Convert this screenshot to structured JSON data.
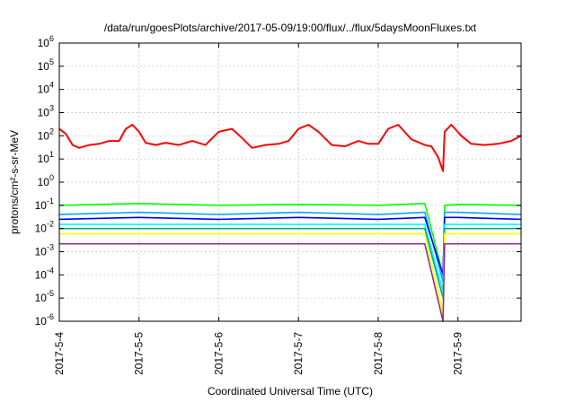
{
  "chart_data": {
    "type": "line",
    "title": "/data/run/goesPlots/archive/2017-05-09/19:00/flux/../flux/5daysMoonFluxes.txt",
    "xlabel": "Coordinated Universal Time (UTC)",
    "ylabel": "protons/cm²-s-sr-MeV",
    "y_scale": "log",
    "ylim": [
      1e-06,
      1000000.0
    ],
    "y_ticks": [
      {
        "value": 1e-06,
        "base": "10",
        "exp": "-6"
      },
      {
        "value": 1e-05,
        "base": "10",
        "exp": "-5"
      },
      {
        "value": 0.0001,
        "base": "10",
        "exp": "-4"
      },
      {
        "value": 0.001,
        "base": "10",
        "exp": "-3"
      },
      {
        "value": 0.01,
        "base": "10",
        "exp": "-2"
      },
      {
        "value": 0.1,
        "base": "10",
        "exp": "-1"
      },
      {
        "value": 1,
        "base": "10",
        "exp": "0"
      },
      {
        "value": 10,
        "base": "10",
        "exp": "1"
      },
      {
        "value": 100,
        "base": "10",
        "exp": "2"
      },
      {
        "value": 1000,
        "base": "10",
        "exp": "3"
      },
      {
        "value": 10000,
        "base": "10",
        "exp": "4"
      },
      {
        "value": 100000,
        "base": "10",
        "exp": "5"
      },
      {
        "value": 1000000,
        "base": "10",
        "exp": "6"
      }
    ],
    "xlim": [
      "2017-05-04 00:00",
      "2017-05-09 19:00"
    ],
    "x_tick_labels": [
      "2017-5-4",
      "2017-5-5",
      "2017-5-6",
      "2017-5-7",
      "2017-5-8",
      "2017-5-9"
    ],
    "grid": true,
    "legend": "none",
    "series": [
      {
        "color": "#ff0000",
        "x": [
          "2017-05-04 00:00",
          "2017-05-04 02:00",
          "2017-05-04 04:00",
          "2017-05-04 06:00",
          "2017-05-04 09:00",
          "2017-05-04 12:00",
          "2017-05-04 15:00",
          "2017-05-04 18:00",
          "2017-05-04 20:00",
          "2017-05-04 22:00",
          "2017-05-05 00:00",
          "2017-05-05 02:00",
          "2017-05-05 05:00",
          "2017-05-05 08:00",
          "2017-05-05 12:00",
          "2017-05-05 16:00",
          "2017-05-05 20:00",
          "2017-05-06 00:00",
          "2017-05-06 04:00",
          "2017-05-06 07:00",
          "2017-05-06 10:00",
          "2017-05-06 14:00",
          "2017-05-06 18:00",
          "2017-05-06 21:00",
          "2017-05-07 00:00",
          "2017-05-07 03:00",
          "2017-05-07 06:00",
          "2017-05-07 10:00",
          "2017-05-07 14:00",
          "2017-05-07 18:00",
          "2017-05-07 21:00",
          "2017-05-08 00:00",
          "2017-05-08 03:00",
          "2017-05-08 06:00",
          "2017-05-08 10:00",
          "2017-05-08 14:00",
          "2017-05-08 16:00",
          "2017-05-08 18:00",
          "2017-05-08 19:30",
          "2017-05-08 20:00",
          "2017-05-08 22:00",
          "2017-05-09 01:00",
          "2017-05-09 04:00",
          "2017-05-09 08:00",
          "2017-05-09 12:00",
          "2017-05-09 16:00",
          "2017-05-09 19:00"
        ],
        "y": [
          200,
          120,
          40,
          30,
          40,
          45,
          60,
          60,
          200,
          300,
          150,
          50,
          40,
          50,
          40,
          60,
          40,
          150,
          200,
          80,
          30,
          40,
          45,
          60,
          200,
          300,
          150,
          40,
          35,
          60,
          45,
          45,
          200,
          300,
          70,
          40,
          35,
          12,
          3,
          150,
          300,
          100,
          45,
          40,
          45,
          60,
          100
        ]
      },
      {
        "color": "#00ff00",
        "x": [
          "2017-05-04 00:00",
          "2017-05-05 00:00",
          "2017-05-06 00:00",
          "2017-05-07 00:00",
          "2017-05-08 00:00",
          "2017-05-08 14:00",
          "2017-05-08 19:30",
          "2017-05-08 20:00",
          "2017-05-09 00:00",
          "2017-05-09 19:00"
        ],
        "y": [
          0.1,
          0.12,
          0.1,
          0.11,
          0.1,
          0.12,
          0.0001,
          0.1,
          0.11,
          0.1
        ]
      },
      {
        "color": "#00aaff",
        "x": [
          "2017-05-04 00:00",
          "2017-05-05 00:00",
          "2017-05-06 00:00",
          "2017-05-07 00:00",
          "2017-05-08 00:00",
          "2017-05-08 14:00",
          "2017-05-08 19:30",
          "2017-05-08 20:00",
          "2017-05-09 00:00",
          "2017-05-09 19:00"
        ],
        "y": [
          0.04,
          0.05,
          0.04,
          0.05,
          0.04,
          0.05,
          5e-05,
          0.05,
          0.05,
          0.04
        ]
      },
      {
        "color": "#0000ff",
        "x": [
          "2017-05-04 00:00",
          "2017-05-05 00:00",
          "2017-05-06 00:00",
          "2017-05-07 00:00",
          "2017-05-08 00:00",
          "2017-05-08 14:00",
          "2017-05-08 19:30",
          "2017-05-08 20:00",
          "2017-05-09 00:00",
          "2017-05-09 19:00"
        ],
        "y": [
          0.025,
          0.03,
          0.025,
          0.03,
          0.025,
          0.03,
          0.0001,
          0.03,
          0.03,
          0.025
        ]
      },
      {
        "color": "#00ffff",
        "x": [
          "2017-05-04 00:00",
          "2017-05-05 00:00",
          "2017-05-06 00:00",
          "2017-05-07 00:00",
          "2017-05-08 00:00",
          "2017-05-08 14:00",
          "2017-05-08 19:30",
          "2017-05-08 20:00",
          "2017-05-09 00:00",
          "2017-05-09 19:00"
        ],
        "y": [
          0.015,
          0.015,
          0.015,
          0.015,
          0.015,
          0.015,
          2e-05,
          0.015,
          0.015,
          0.015
        ]
      },
      {
        "color": "#00aa88",
        "x": [
          "2017-05-04 00:00",
          "2017-05-05 00:00",
          "2017-05-06 00:00",
          "2017-05-07 00:00",
          "2017-05-08 00:00",
          "2017-05-08 14:00",
          "2017-05-08 19:30",
          "2017-05-08 20:00",
          "2017-05-09 00:00",
          "2017-05-09 19:00"
        ],
        "y": [
          0.01,
          0.01,
          0.01,
          0.01,
          0.01,
          0.01,
          1e-05,
          0.01,
          0.01,
          0.01
        ]
      },
      {
        "color": "#ffff00",
        "x": [
          "2017-05-04 00:00",
          "2017-05-05 00:00",
          "2017-05-06 00:00",
          "2017-05-07 00:00",
          "2017-05-08 00:00",
          "2017-05-08 14:00",
          "2017-05-08 19:30",
          "2017-05-08 20:00",
          "2017-05-09 00:00",
          "2017-05-09 19:00"
        ],
        "y": [
          0.006,
          0.006,
          0.006,
          0.006,
          0.006,
          0.006,
          2e-06,
          0.006,
          0.006,
          0.006
        ]
      },
      {
        "color": "#883388",
        "x": [
          "2017-05-04 00:00",
          "2017-05-05 00:00",
          "2017-05-06 00:00",
          "2017-05-07 00:00",
          "2017-05-08 00:00",
          "2017-05-08 14:00",
          "2017-05-08 19:30",
          "2017-05-08 20:00",
          "2017-05-09 00:00",
          "2017-05-09 19:00"
        ],
        "y": [
          0.0022,
          0.0022,
          0.0022,
          0.0022,
          0.0022,
          0.0022,
          1e-06,
          0.0022,
          0.0022,
          0.0022
        ]
      }
    ]
  }
}
